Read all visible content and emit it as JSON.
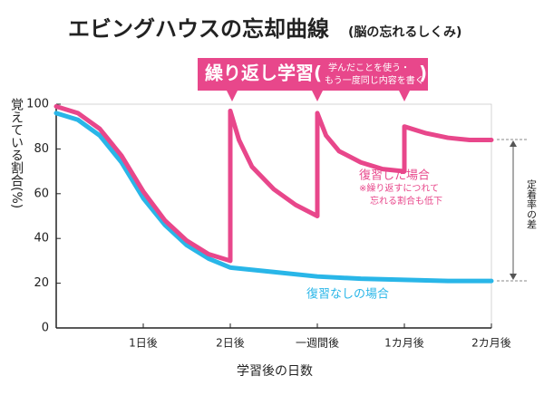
{
  "chart_data": {
    "type": "line",
    "title": "エビングハウスの忘却曲線",
    "subtitle": "(脳の忘れるしくみ)",
    "y_label": "覚えている割合(%)",
    "x_label": "学習後の日数",
    "banner": {
      "text": "繰り返し学習(",
      "note": [
        "学んだことを使う・",
        "もう一度同じ内容を書く"
      ],
      "close": ")"
    },
    "review_note": [
      "※繰り返すにつれて",
      "忘れる割合も低下"
    ],
    "difference_label": "定着率の差",
    "xlim": [
      0,
      5
    ],
    "xticks": [
      {
        "value": 1,
        "label": "1日後"
      },
      {
        "value": 2,
        "label": "2日後"
      },
      {
        "value": 3,
        "label": "一週間後"
      },
      {
        "value": 4,
        "label": "1カ月後"
      },
      {
        "value": 5,
        "label": "2カ月後"
      }
    ],
    "ylim": [
      0,
      100
    ],
    "yticks": [
      0,
      20,
      40,
      60,
      80,
      100
    ],
    "grid": false,
    "series": [
      {
        "name": "復習した場合",
        "color": "#e8478b",
        "x": [
          0,
          0.25,
          0.5,
          0.75,
          1,
          1.25,
          1.5,
          1.75,
          2,
          2,
          2.1,
          2.25,
          2.5,
          2.75,
          3,
          3,
          3.1,
          3.25,
          3.5,
          3.75,
          4,
          4,
          4.25,
          4.5,
          4.75,
          5
        ],
        "values": [
          99,
          96,
          89,
          77,
          61,
          48,
          39,
          33,
          30,
          97,
          84,
          72,
          62,
          55,
          50,
          96,
          86,
          79,
          74,
          71,
          70,
          90,
          87,
          85,
          84,
          84
        ]
      },
      {
        "name": "復習なしの場合",
        "color": "#29b6e8",
        "x": [
          0,
          0.25,
          0.5,
          0.75,
          1,
          1.25,
          1.5,
          1.75,
          2,
          2.5,
          3,
          3.5,
          4,
          4.5,
          5
        ],
        "values": [
          96,
          93,
          86,
          74,
          58,
          46,
          37,
          31,
          27,
          25,
          23,
          22,
          21.5,
          21,
          21
        ]
      }
    ]
  }
}
